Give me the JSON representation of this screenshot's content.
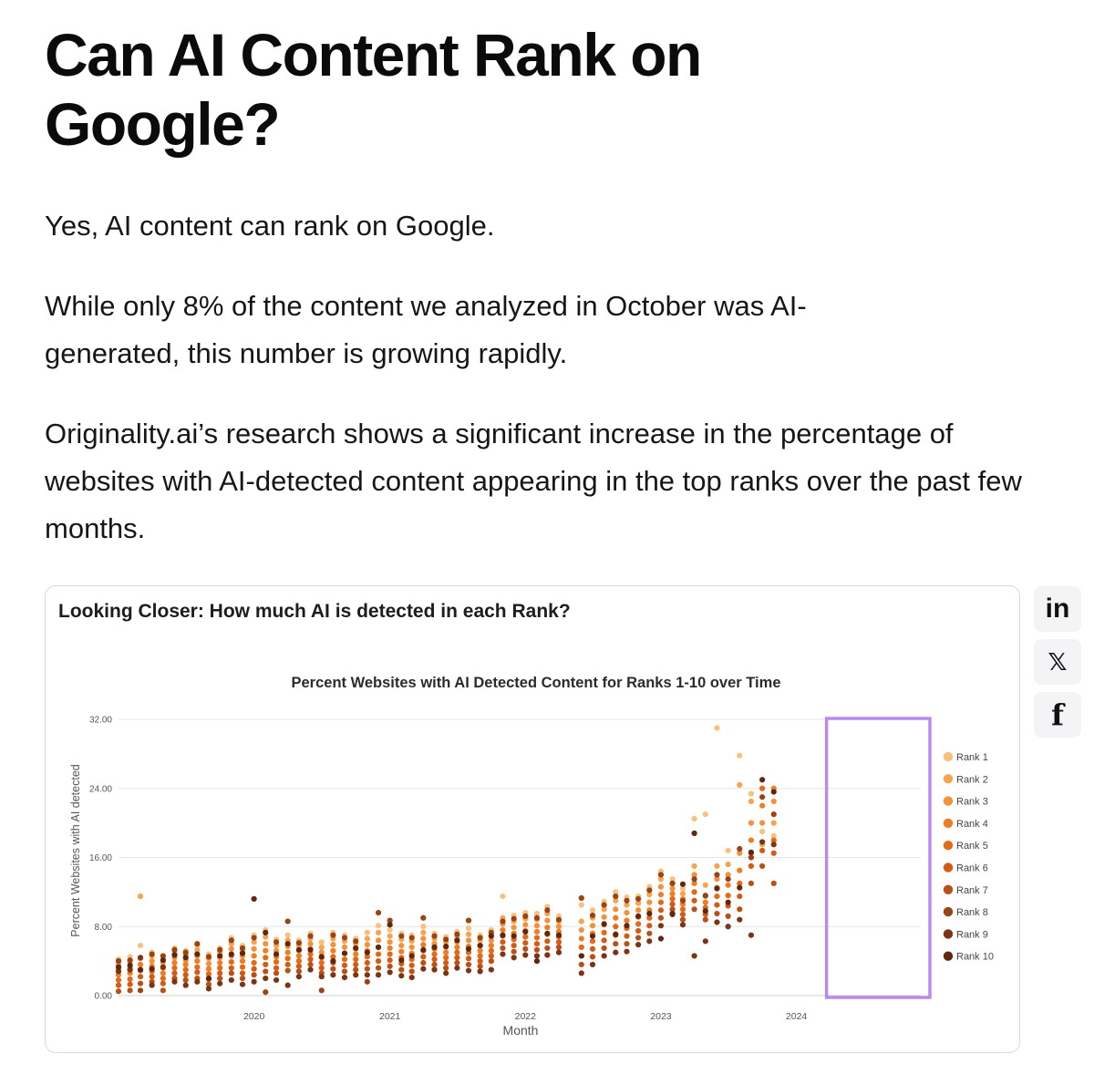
{
  "article": {
    "title": "Can AI Content Rank on Google?",
    "paragraphs": [
      "Yes, AI content can rank on Google.",
      "While only 8% of the content we analyzed in October was AI-generated, this number is growing rapidly.",
      "Originality.ai’s research shows a significant increase in the percentage of websites with AI-detected content appearing in the top ranks over the past few months."
    ]
  },
  "card": {
    "title": "Looking Closer: How much AI is detected in each Rank?"
  },
  "share": {
    "linkedin": {
      "icon": "linkedin-icon",
      "glyph": "in"
    },
    "x": {
      "icon": "x-icon",
      "glyph": "𝕏"
    },
    "facebook": {
      "icon": "facebook-icon",
      "glyph": "f"
    }
  },
  "chart_data": {
    "type": "scatter",
    "title": "Percent Websites with AI Detected Content for Ranks 1-10 over Time",
    "xlabel": "Month",
    "ylabel": "Percent Websites with AI detected",
    "xlim": [
      "2019-01-01",
      "2024-12-01"
    ],
    "ylim": [
      0,
      32
    ],
    "yticks": [
      "0.00",
      "8.00",
      "16.00",
      "24.00",
      "32.00"
    ],
    "xticks": [
      {
        "label": "2020",
        "date": "2020-01-01"
      },
      {
        "label": "2021",
        "date": "2021-01-01"
      },
      {
        "label": "2022",
        "date": "2022-01-01"
      },
      {
        "label": "2023",
        "date": "2023-01-01"
      },
      {
        "label": "2024",
        "date": "2024-01-01"
      }
    ],
    "grid": true,
    "legend_position": "right",
    "highlight": {
      "from": "2024-04-01",
      "to": "2024-12-01",
      "color": "#b98af0"
    },
    "series": [
      {
        "name": "Rank 1",
        "color": "#f9c27c"
      },
      {
        "name": "Rank 2",
        "color": "#f7a44e"
      },
      {
        "name": "Rank 3",
        "color": "#f4913a"
      },
      {
        "name": "Rank 4",
        "color": "#ef7d23"
      },
      {
        "name": "Rank 5",
        "color": "#e46a17"
      },
      {
        "name": "Rank 6",
        "color": "#d25c16"
      },
      {
        "name": "Rank 7",
        "color": "#b95016"
      },
      {
        "name": "Rank 8",
        "color": "#9c4315"
      },
      {
        "name": "Rank 9",
        "color": "#7d3412"
      },
      {
        "name": "Rank 10",
        "color": "#5e270e"
      }
    ],
    "points": [
      [
        "2019-01",
        [
          4.2,
          3.6,
          3.0,
          2.4,
          1.8,
          1.2,
          0.5,
          4.0,
          2.8,
          3.3
        ]
      ],
      [
        "2019-02",
        [
          4.5,
          3.9,
          3.2,
          2.6,
          1.9,
          1.3,
          0.6,
          4.1,
          3.0,
          3.5
        ]
      ],
      [
        "2019-03",
        [
          5.8,
          11.5,
          4.3,
          3.6,
          2.9,
          2.2,
          1.4,
          0.6,
          4.4,
          3.0
        ]
      ],
      [
        "2019-04",
        [
          5.0,
          4.6,
          4.0,
          3.4,
          2.8,
          2.2,
          1.6,
          4.8,
          1.2,
          3.1
        ]
      ],
      [
        "2019-05",
        [
          4.4,
          3.8,
          3.2,
          2.6,
          2.0,
          1.4,
          0.6,
          4.6,
          3.3,
          4.1
        ]
      ],
      [
        "2019-06",
        [
          5.5,
          5.0,
          4.4,
          3.8,
          3.2,
          2.6,
          2.0,
          5.3,
          1.6,
          4.7
        ]
      ],
      [
        "2019-07",
        [
          5.2,
          4.7,
          4.1,
          3.6,
          3.0,
          2.4,
          1.8,
          5.0,
          1.2,
          4.4
        ]
      ],
      [
        "2019-08",
        [
          5.8,
          5.3,
          4.6,
          4.0,
          3.3,
          2.7,
          2.0,
          6.0,
          1.6,
          4.8
        ]
      ],
      [
        "2019-09",
        [
          4.8,
          4.3,
          3.7,
          3.1,
          2.5,
          1.9,
          1.3,
          4.5,
          0.8,
          2.0
        ]
      ],
      [
        "2019-10",
        [
          5.5,
          5.0,
          4.4,
          3.8,
          3.2,
          2.6,
          2.0,
          5.3,
          1.4,
          4.6
        ]
      ],
      [
        "2019-11",
        [
          6.7,
          6.0,
          5.4,
          4.6,
          3.9,
          3.2,
          2.6,
          6.4,
          1.8,
          4.8
        ]
      ],
      [
        "2019-12",
        [
          5.8,
          5.3,
          4.6,
          4.0,
          3.3,
          2.6,
          2.0,
          5.5,
          1.3,
          4.9
        ]
      ],
      [
        "2020-01",
        [
          7.0,
          6.2,
          5.4,
          4.6,
          3.8,
          3.1,
          2.4,
          6.7,
          1.6,
          11.2
        ]
      ],
      [
        "2020-02",
        [
          7.6,
          6.8,
          6.0,
          5.2,
          4.4,
          3.6,
          2.8,
          0.4,
          2.0,
          7.3
        ]
      ],
      [
        "2020-03",
        [
          6.5,
          5.8,
          5.2,
          4.5,
          3.9,
          3.2,
          2.6,
          6.2,
          1.8,
          4.8
        ]
      ],
      [
        "2020-04",
        [
          7.0,
          6.4,
          5.7,
          5.0,
          4.3,
          3.6,
          2.9,
          8.6,
          1.2,
          6.0
        ]
      ],
      [
        "2020-05",
        [
          6.4,
          5.8,
          5.2,
          4.6,
          4.0,
          3.4,
          2.8,
          6.1,
          2.2,
          5.3
        ]
      ],
      [
        "2020-06",
        [
          7.2,
          6.6,
          6.0,
          5.4,
          4.8,
          4.2,
          3.6,
          6.9,
          3.0,
          5.3
        ]
      ],
      [
        "2020-07",
        [
          6.2,
          5.6,
          5.0,
          4.4,
          3.8,
          3.2,
          2.6,
          0.6,
          2.2,
          4.5
        ]
      ],
      [
        "2020-08",
        [
          7.3,
          6.6,
          5.9,
          5.2,
          4.5,
          3.8,
          3.1,
          7.0,
          2.4,
          4.0
        ]
      ],
      [
        "2020-09",
        [
          7.0,
          6.3,
          5.6,
          4.9,
          4.2,
          3.5,
          2.8,
          6.7,
          2.1,
          4.9
        ]
      ],
      [
        "2020-10",
        [
          6.6,
          6.0,
          5.4,
          4.8,
          4.2,
          3.6,
          3.0,
          6.3,
          2.4,
          5.5
        ]
      ],
      [
        "2020-11",
        [
          7.3,
          6.6,
          5.9,
          5.2,
          4.5,
          3.8,
          3.1,
          1.6,
          2.4,
          5.0
        ]
      ],
      [
        "2020-12",
        [
          8.1,
          7.3,
          6.4,
          5.6,
          4.8,
          4.0,
          3.2,
          9.6,
          2.4,
          5.6
        ]
      ],
      [
        "2021-01",
        [
          7.6,
          6.9,
          6.2,
          5.5,
          4.8,
          4.1,
          3.4,
          8.7,
          2.7,
          8.2
        ]
      ],
      [
        "2021-02",
        [
          7.2,
          6.5,
          5.8,
          5.1,
          4.4,
          3.7,
          3.0,
          6.9,
          2.3,
          4.1
        ]
      ],
      [
        "2021-03",
        [
          7.0,
          6.3,
          5.6,
          4.9,
          4.2,
          3.5,
          2.8,
          6.7,
          2.1,
          4.6
        ]
      ],
      [
        "2021-04",
        [
          8.0,
          7.3,
          6.6,
          5.9,
          5.2,
          4.5,
          3.8,
          9.0,
          3.1,
          5.3
        ]
      ],
      [
        "2021-05",
        [
          7.2,
          6.6,
          6.0,
          5.4,
          4.8,
          4.2,
          3.6,
          6.9,
          3.0,
          5.6
        ]
      ],
      [
        "2021-06",
        [
          6.8,
          6.2,
          5.6,
          5.0,
          4.4,
          3.8,
          3.2,
          6.5,
          2.6,
          5.7
        ]
      ],
      [
        "2021-07",
        [
          7.4,
          6.8,
          6.2,
          5.6,
          5.0,
          4.4,
          3.8,
          7.1,
          3.2,
          6.4
        ]
      ],
      [
        "2021-08",
        [
          7.8,
          7.1,
          6.4,
          5.7,
          5.0,
          4.3,
          3.6,
          8.7,
          2.9,
          5.4
        ]
      ],
      [
        "2021-09",
        [
          7.0,
          6.4,
          5.8,
          5.2,
          4.6,
          4.0,
          3.4,
          6.7,
          2.8,
          5.8
        ]
      ],
      [
        "2021-10",
        [
          7.6,
          7.0,
          6.4,
          5.8,
          5.2,
          4.6,
          4.0,
          7.3,
          3.0,
          6.9
        ]
      ],
      [
        "2021-11",
        [
          11.5,
          9.0,
          8.3,
          7.6,
          6.9,
          6.2,
          5.5,
          8.6,
          4.8,
          7.0
        ]
      ],
      [
        "2021-12",
        [
          9.3,
          8.6,
          7.9,
          7.2,
          6.5,
          5.8,
          5.1,
          8.9,
          4.4,
          6.9
        ]
      ],
      [
        "2022-01",
        [
          9.6,
          8.9,
          8.2,
          7.5,
          6.8,
          6.1,
          5.4,
          9.2,
          4.7,
          7.4
        ]
      ],
      [
        "2022-02",
        [
          9.5,
          8.8,
          8.1,
          7.4,
          6.7,
          6.0,
          5.3,
          9.0,
          4.6,
          4.0
        ]
      ],
      [
        "2022-03",
        [
          10.3,
          9.5,
          8.7,
          7.9,
          7.1,
          6.3,
          5.5,
          9.9,
          4.7,
          7.2
        ]
      ],
      [
        "2022-04",
        [
          9.2,
          8.6,
          8.0,
          7.4,
          6.8,
          6.2,
          5.6,
          8.8,
          5.0,
          7.0
        ]
      ],
      [
        "2022-06",
        [
          10.5,
          8.6,
          7.6,
          6.6,
          5.6,
          4.6,
          3.6,
          11.3,
          2.6,
          4.6
        ]
      ],
      [
        "2022-07",
        [
          9.9,
          9.0,
          8.1,
          7.2,
          6.3,
          5.4,
          4.5,
          9.3,
          3.6,
          6.9
        ]
      ],
      [
        "2022-08",
        [
          10.9,
          10.0,
          9.1,
          8.2,
          7.3,
          6.4,
          5.5,
          10.5,
          4.6,
          8.3
        ]
      ],
      [
        "2022-09",
        [
          12.0,
          11.0,
          10.0,
          9.0,
          8.0,
          7.0,
          6.0,
          11.5,
          5.0,
          7.1
        ]
      ],
      [
        "2022-10",
        [
          11.4,
          10.5,
          9.6,
          8.7,
          7.8,
          6.9,
          6.0,
          11.0,
          5.1,
          8.1
        ]
      ],
      [
        "2022-11",
        [
          11.5,
          10.7,
          9.9,
          9.1,
          8.3,
          7.5,
          6.7,
          11.2,
          5.9,
          9.2
        ]
      ],
      [
        "2022-12",
        [
          12.6,
          11.7,
          10.8,
          9.9,
          9.0,
          8.1,
          7.2,
          12.2,
          6.3,
          9.5
        ]
      ],
      [
        "2023-01",
        [
          14.4,
          13.5,
          12.6,
          11.7,
          10.8,
          9.9,
          9.0,
          14.0,
          8.1,
          6.6
        ]
      ],
      [
        "2023-02",
        [
          13.5,
          13.0,
          12.4,
          11.8,
          11.2,
          10.6,
          10.0,
          13.0,
          9.4,
          9.5
        ]
      ],
      [
        "2023-03",
        [
          12.4,
          11.8,
          11.2,
          10.6,
          10.0,
          9.4,
          8.8,
          11.0,
          8.2,
          12.9
        ]
      ],
      [
        "2023-04",
        [
          20.5,
          15.0,
          14.0,
          13.0,
          12.0,
          11.0,
          10.0,
          13.5,
          4.6,
          18.8
        ]
      ],
      [
        "2023-05",
        [
          21.0,
          12.8,
          11.5,
          10.8,
          10.2,
          9.4,
          8.8,
          11.6,
          6.3,
          9.8
        ]
      ],
      [
        "2023-06",
        [
          31.0,
          15.0,
          13.5,
          12.5,
          11.5,
          10.5,
          9.5,
          14.0,
          8.5,
          12.4
        ]
      ],
      [
        "2023-07",
        [
          16.8,
          15.2,
          14.0,
          12.8,
          11.6,
          10.4,
          9.2,
          13.5,
          8.0,
          10.8
        ]
      ],
      [
        "2023-08",
        [
          27.8,
          24.4,
          16.5,
          14.5,
          13.0,
          11.5,
          10.0,
          17.0,
          8.8,
          12.5
        ]
      ],
      [
        "2023-09",
        [
          23.4,
          22.5,
          20.0,
          18.0,
          16.5,
          15.0,
          13.0,
          16.0,
          7.0,
          16.6
        ]
      ],
      [
        "2023-10",
        [
          19.0,
          17.5,
          20.0,
          22.0,
          24.0,
          16.8,
          15.0,
          23.0,
          17.8,
          25.0
        ]
      ],
      [
        "2023-11",
        [
          18.5,
          20.0,
          22.5,
          24.0,
          18.0,
          16.5,
          13.0,
          21.0,
          17.5,
          23.6
        ]
      ]
    ]
  }
}
